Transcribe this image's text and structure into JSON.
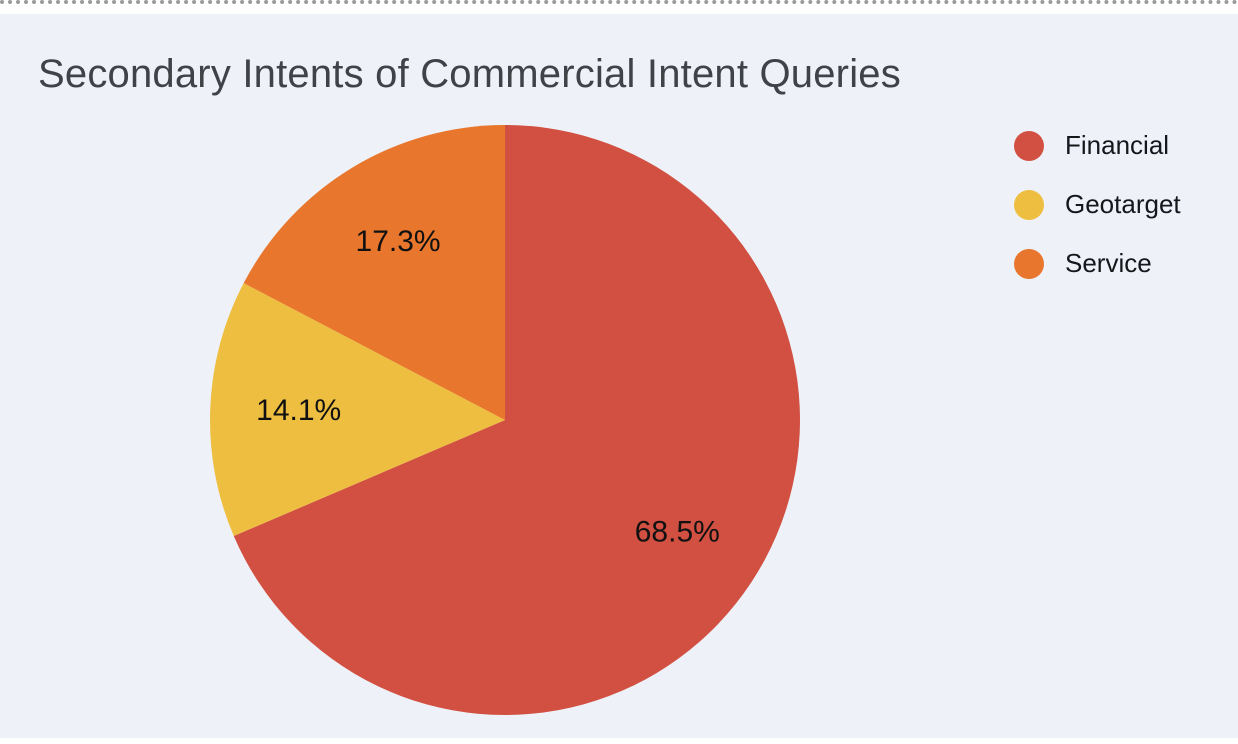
{
  "page": {
    "background_color": "#eef2f8",
    "strip_color": "#ffffff",
    "top_dotted_line_color": "#9a9a9a"
  },
  "chart_data": {
    "type": "pie",
    "title": "Secondary Intents of Commercial Intent Queries",
    "title_color": "#3f4347",
    "labels": [
      "Financial",
      "Geotarget",
      "Service"
    ],
    "values": [
      68.5,
      14.1,
      17.3
    ],
    "value_labels": [
      "68.5%",
      "14.1%",
      "17.3%"
    ],
    "colors": [
      "#d25042",
      "#eebe41",
      "#e8762c"
    ],
    "slice_label_color": "#111111",
    "start_angle_deg": 0,
    "direction": "clockwise",
    "legend_position": "right",
    "legend": [
      {
        "label": "Financial",
        "color": "#d25042"
      },
      {
        "label": "Geotarget",
        "color": "#eebe41"
      },
      {
        "label": "Service",
        "color": "#e8762c"
      }
    ]
  }
}
